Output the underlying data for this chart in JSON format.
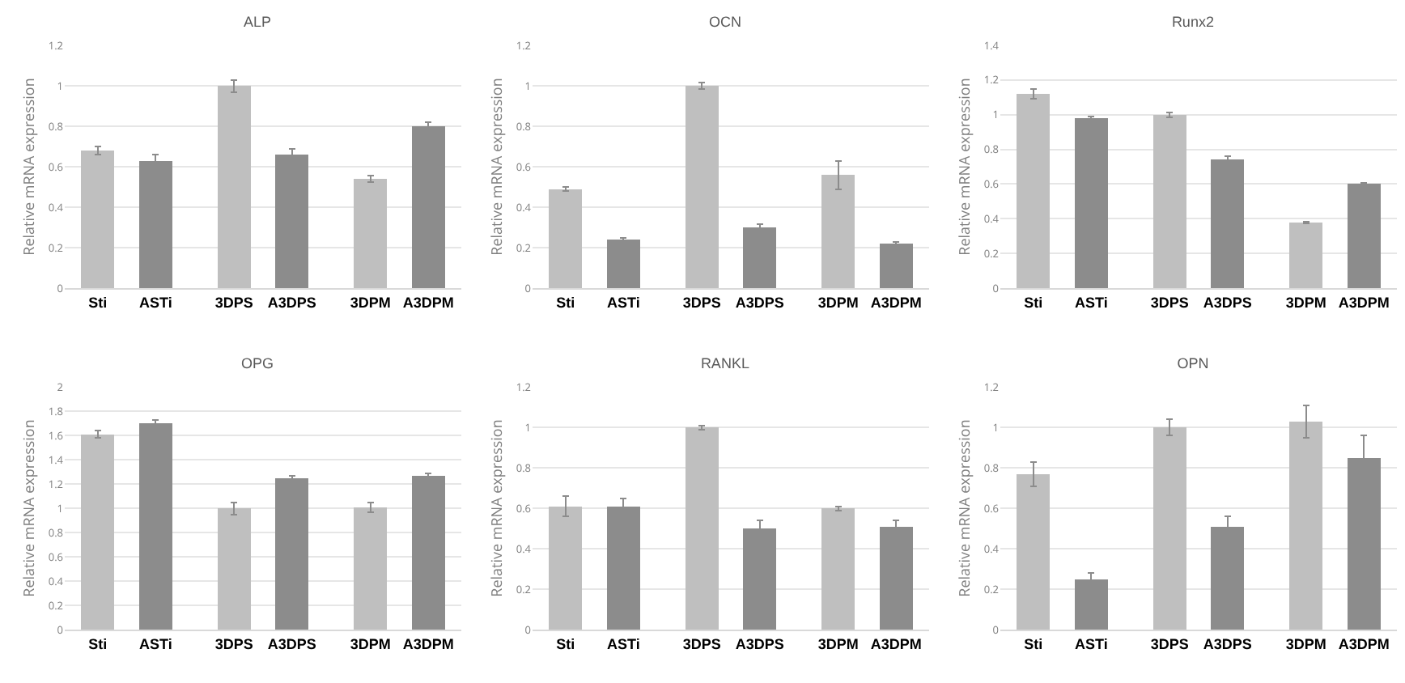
{
  "chart_data": [
    {
      "type": "bar",
      "title": "ALP",
      "ylabel": "Relative mRNA expression",
      "categories": [
        "Sti",
        "ASTi",
        "3DPS",
        "A3DPS",
        "3DPM",
        "A3DPM"
      ],
      "values": [
        0.68,
        0.63,
        1.0,
        0.66,
        0.54,
        0.8
      ],
      "errors": [
        0.02,
        0.03,
        0.03,
        0.03,
        0.015,
        0.02
      ],
      "colors": [
        "#bfbfbf",
        "#8c8c8c",
        "#bfbfbf",
        "#8c8c8c",
        "#bfbfbf",
        "#8c8c8c"
      ],
      "ylim": [
        0,
        1.2
      ],
      "yticks": [
        0,
        0.2,
        0.4,
        0.6,
        0.8,
        1,
        1.2
      ],
      "grid": "y"
    },
    {
      "type": "bar",
      "title": "OCN",
      "ylabel": "Relative mRNA expression",
      "categories": [
        "Sti",
        "ASTi",
        "3DPS",
        "A3DPS",
        "3DPM",
        "A3DPM"
      ],
      "values": [
        0.49,
        0.24,
        1.0,
        0.3,
        0.56,
        0.22
      ],
      "errors": [
        0.01,
        0.01,
        0.015,
        0.015,
        0.07,
        0.01
      ],
      "colors": [
        "#bfbfbf",
        "#8c8c8c",
        "#bfbfbf",
        "#8c8c8c",
        "#bfbfbf",
        "#8c8c8c"
      ],
      "ylim": [
        0,
        1.2
      ],
      "yticks": [
        0,
        0.2,
        0.4,
        0.6,
        0.8,
        1,
        1.2
      ],
      "grid": "y"
    },
    {
      "type": "bar",
      "title": "Runx2",
      "ylabel": "Relative mRNA expression",
      "categories": [
        "Sti",
        "ASTi",
        "3DPS",
        "A3DPS",
        "3DPM",
        "A3DPM"
      ],
      "values": [
        1.12,
        0.98,
        1.0,
        0.74,
        0.38,
        0.6
      ],
      "errors": [
        0.03,
        0.01,
        0.015,
        0.02,
        0.005,
        0.005
      ],
      "colors": [
        "#bfbfbf",
        "#8c8c8c",
        "#bfbfbf",
        "#8c8c8c",
        "#bfbfbf",
        "#8c8c8c"
      ],
      "ylim": [
        0,
        1.4
      ],
      "yticks": [
        0,
        0.2,
        0.4,
        0.6,
        0.8,
        1,
        1.2,
        1.4
      ],
      "grid": "y"
    },
    {
      "type": "bar",
      "title": "OPG",
      "ylabel": "Relative mRNA expression",
      "categories": [
        "Sti",
        "ASTi",
        "3DPS",
        "A3DPS",
        "3DPM",
        "A3DPM"
      ],
      "values": [
        1.61,
        1.7,
        1.0,
        1.25,
        1.01,
        1.27
      ],
      "errors": [
        0.03,
        0.03,
        0.05,
        0.02,
        0.04,
        0.02
      ],
      "colors": [
        "#bfbfbf",
        "#8c8c8c",
        "#bfbfbf",
        "#8c8c8c",
        "#bfbfbf",
        "#8c8c8c"
      ],
      "ylim": [
        0,
        2
      ],
      "yticks": [
        0,
        0.2,
        0.4,
        0.6,
        0.8,
        1,
        1.2,
        1.4,
        1.6,
        1.8,
        2
      ],
      "grid": "y"
    },
    {
      "type": "bar",
      "title": "RANKL",
      "ylabel": "Relative mRNA expression",
      "categories": [
        "Sti",
        "ASTi",
        "3DPS",
        "A3DPS",
        "3DPM",
        "A3DPM"
      ],
      "values": [
        0.61,
        0.61,
        1.0,
        0.5,
        0.6,
        0.51
      ],
      "errors": [
        0.05,
        0.04,
        0.01,
        0.04,
        0.01,
        0.03
      ],
      "colors": [
        "#bfbfbf",
        "#8c8c8c",
        "#bfbfbf",
        "#8c8c8c",
        "#bfbfbf",
        "#8c8c8c"
      ],
      "ylim": [
        0,
        1.2
      ],
      "yticks": [
        0,
        0.2,
        0.4,
        0.6,
        0.8,
        1,
        1.2
      ],
      "grid": "y"
    },
    {
      "type": "bar",
      "title": "OPN",
      "ylabel": "Relative mRNA expression",
      "categories": [
        "Sti",
        "ASTi",
        "3DPS",
        "A3DPS",
        "3DPM",
        "A3DPM"
      ],
      "values": [
        0.77,
        0.25,
        1.0,
        0.51,
        1.03,
        0.85
      ],
      "errors": [
        0.06,
        0.03,
        0.04,
        0.05,
        0.08,
        0.11
      ],
      "colors": [
        "#bfbfbf",
        "#8c8c8c",
        "#bfbfbf",
        "#8c8c8c",
        "#bfbfbf",
        "#8c8c8c"
      ],
      "ylim": [
        0,
        1.2
      ],
      "yticks": [
        0,
        0.2,
        0.4,
        0.6,
        0.8,
        1,
        1.2
      ],
      "grid": "y"
    }
  ]
}
